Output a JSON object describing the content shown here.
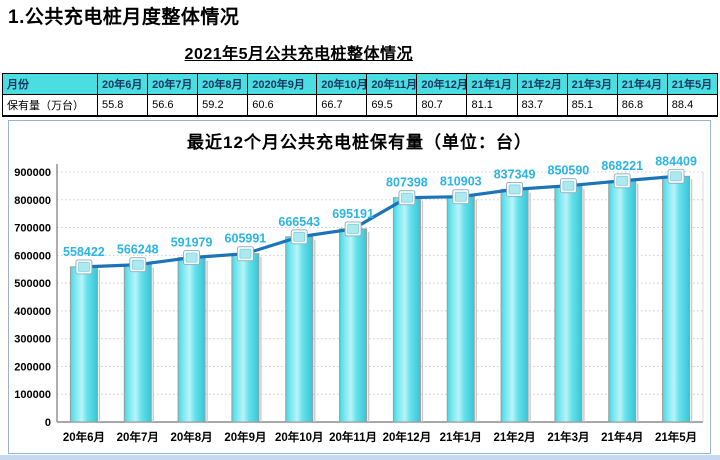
{
  "header": {
    "title": "1.公共充电桩月度整体情况",
    "subtitle": "2021年5月公共充电桩整体情况"
  },
  "table": {
    "row_header_label": "月份",
    "value_row_label": "保有量（万台）",
    "columns": [
      "20年6月",
      "20年7月",
      "20年8月",
      "2020年9月",
      "20年10月",
      "20年11月",
      "20年12月",
      "21年1月",
      "21年2月",
      "21年3月",
      "21年4月",
      "21年5月"
    ],
    "values": [
      "55.8",
      "56.6",
      "59.2",
      "60.6",
      "66.7",
      "69.5",
      "80.7",
      "81.1",
      "83.7",
      "85.1",
      "86.8",
      "88.4"
    ],
    "header_bg": "#4adde2",
    "header_text_color": "#17375e"
  },
  "chart_data": {
    "type": "bar",
    "title": "最近12个月公共充电桩保有量（单位：台）",
    "categories": [
      "20年6月",
      "20年7月",
      "20年8月",
      "20年9月",
      "20年10月",
      "20年11月",
      "20年12月",
      "21年1月",
      "21年2月",
      "21年3月",
      "21年4月",
      "21年5月"
    ],
    "values": [
      558422,
      566248,
      591979,
      605991,
      666543,
      695191,
      807398,
      810903,
      837349,
      850590,
      868221,
      884409
    ],
    "series_overlay": "line-with-square-markers",
    "xlabel": "",
    "ylabel": "",
    "ylim": [
      0,
      900000
    ],
    "ytick_step": 100000,
    "grid": true,
    "legend": "none",
    "colors": {
      "bar_fill": "#48d6e4",
      "bar_highlight": "#b9f3f8",
      "bar_edge": "#9c9c9c",
      "line": "#1b73b8",
      "marker_fill": "#aee9f0",
      "marker_border": "#f2fbfd",
      "data_label": "#2bb4e8",
      "grid_line": "#cccccc",
      "axis_line": "#8c8c8c",
      "panel_border": "#95b3d7",
      "bottom_strip": "#c5d9f1"
    }
  }
}
